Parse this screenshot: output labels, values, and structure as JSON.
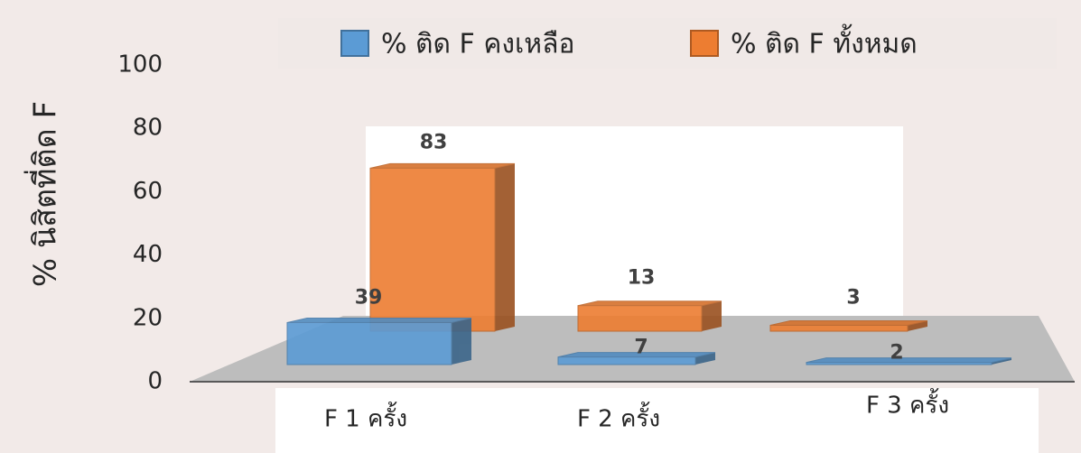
{
  "chart_data": {
    "type": "bar",
    "y_label": "% นิสิตที่ติด F",
    "categories": [
      "F 1 ครั้ง",
      "F 2 ครั้ง",
      "F 3 ครั้ง"
    ],
    "series": [
      {
        "name": "% ติด F คงเหลือ",
        "color": "#5b9bd5",
        "values": [
          39,
          7,
          2
        ]
      },
      {
        "name": "% ติด F ทั้งหมด",
        "color": "#ed7d31",
        "values": [
          83,
          13,
          3
        ]
      }
    ],
    "ylim": [
      0,
      100
    ],
    "yticks": [
      0,
      20,
      40,
      60,
      80,
      100
    ],
    "legend": "top"
  }
}
